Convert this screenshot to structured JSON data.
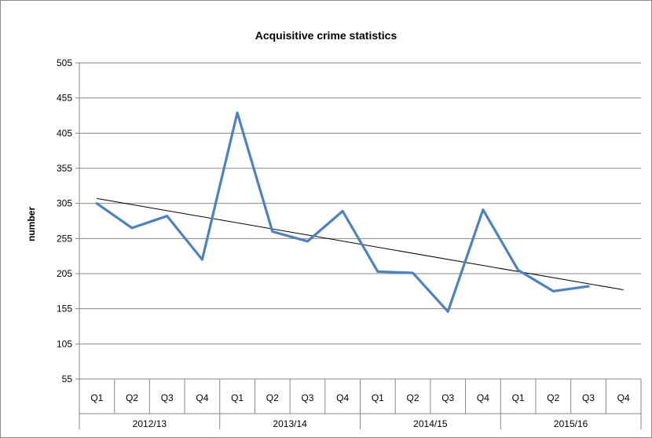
{
  "chart_data": {
    "type": "line",
    "title": "Acquisitive crime statistics",
    "ylabel": "number",
    "xlabel": "",
    "ylim": [
      55,
      505
    ],
    "y_ticks": [
      55,
      105,
      155,
      205,
      255,
      305,
      355,
      405,
      455,
      505
    ],
    "grid": "horizontal",
    "legend": "none",
    "quarters": [
      "Q1",
      "Q2",
      "Q3",
      "Q4",
      "Q1",
      "Q2",
      "Q3",
      "Q4",
      "Q1",
      "Q2",
      "Q3",
      "Q4",
      "Q1",
      "Q2",
      "Q3",
      "Q4"
    ],
    "years": [
      "2012/13",
      "2013/14",
      "2014/15",
      "2015/16"
    ],
    "series": [
      {
        "color": "#4f81bd",
        "values": [
          305,
          270,
          287,
          225,
          434,
          265,
          251,
          294,
          208,
          206,
          151,
          296,
          210,
          180,
          187,
          null
        ]
      }
    ],
    "trendline": {
      "color": "#000000",
      "start": 312,
      "end": 182
    }
  }
}
